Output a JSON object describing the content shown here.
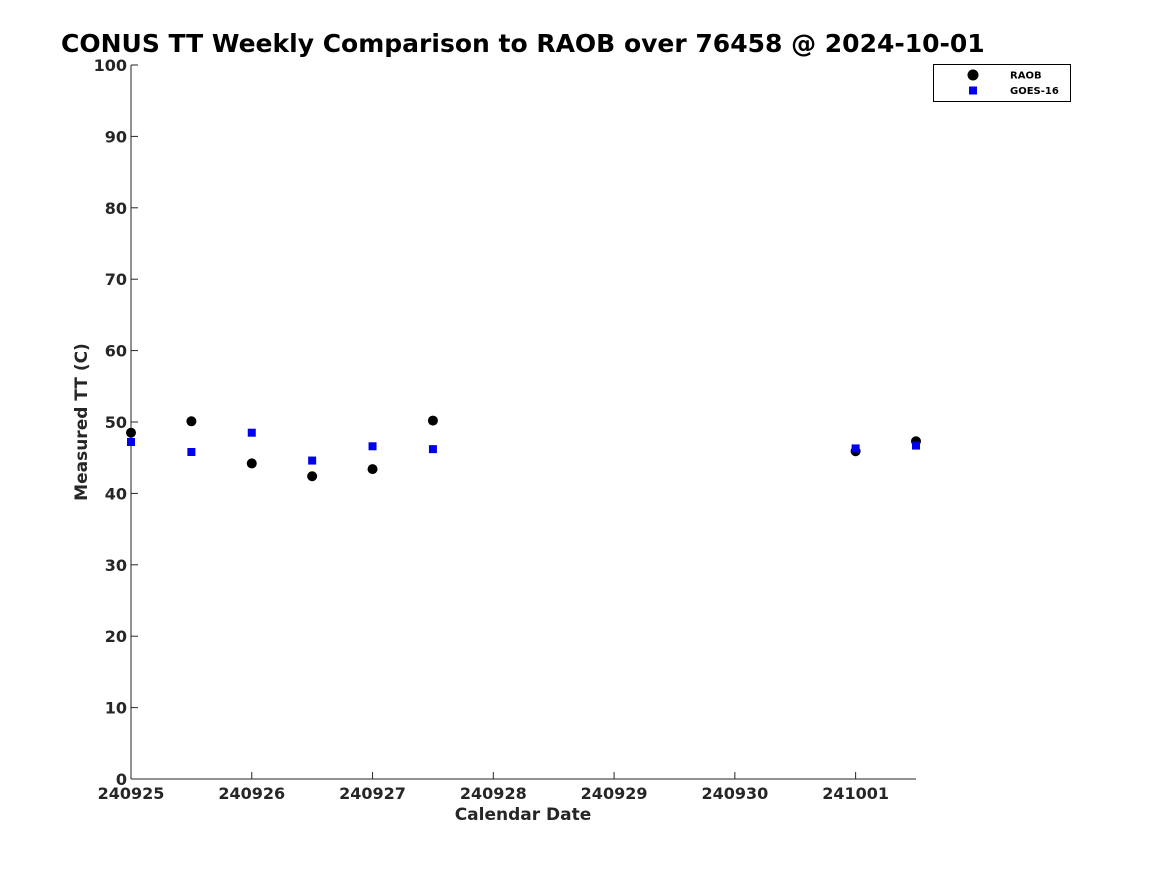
{
  "chart_data": {
    "type": "scatter",
    "title": "CONUS TT Weekly Comparison to RAOB over 76458 @ 2024-10-01",
    "xlabel": "Calendar Date",
    "ylabel": "Measured TT (C)",
    "xlim": [
      0,
      6.5
    ],
    "ylim": [
      0,
      100
    ],
    "x_ticks": [
      {
        "value": 0,
        "label": "240925"
      },
      {
        "value": 1,
        "label": "240926"
      },
      {
        "value": 2,
        "label": "240927"
      },
      {
        "value": 3,
        "label": "240928"
      },
      {
        "value": 4,
        "label": "240929"
      },
      {
        "value": 5,
        "label": "240930"
      },
      {
        "value": 6,
        "label": "241001"
      }
    ],
    "y_ticks": [
      0,
      10,
      20,
      30,
      40,
      50,
      60,
      70,
      80,
      90,
      100
    ],
    "grid": false,
    "legend_position": "top-right",
    "series": [
      {
        "name": "RAOB",
        "marker": "circle",
        "color": "#000000",
        "points": [
          {
            "x": 0,
            "y": 48.5
          },
          {
            "x": 0.5,
            "y": 50.1
          },
          {
            "x": 1,
            "y": 44.2
          },
          {
            "x": 1.5,
            "y": 42.4
          },
          {
            "x": 2,
            "y": 43.4
          },
          {
            "x": 2.5,
            "y": 50.2
          },
          {
            "x": 6,
            "y": 45.9
          },
          {
            "x": 6.5,
            "y": 47.3
          }
        ]
      },
      {
        "name": "GOES-16",
        "marker": "square",
        "color": "#0000ee",
        "points": [
          {
            "x": 0,
            "y": 47.2
          },
          {
            "x": 0.5,
            "y": 45.8
          },
          {
            "x": 1,
            "y": 48.5
          },
          {
            "x": 1.5,
            "y": 44.6
          },
          {
            "x": 2,
            "y": 46.6
          },
          {
            "x": 2.5,
            "y": 46.2
          },
          {
            "x": 6,
            "y": 46.3
          },
          {
            "x": 6.5,
            "y": 46.7
          }
        ]
      }
    ]
  }
}
